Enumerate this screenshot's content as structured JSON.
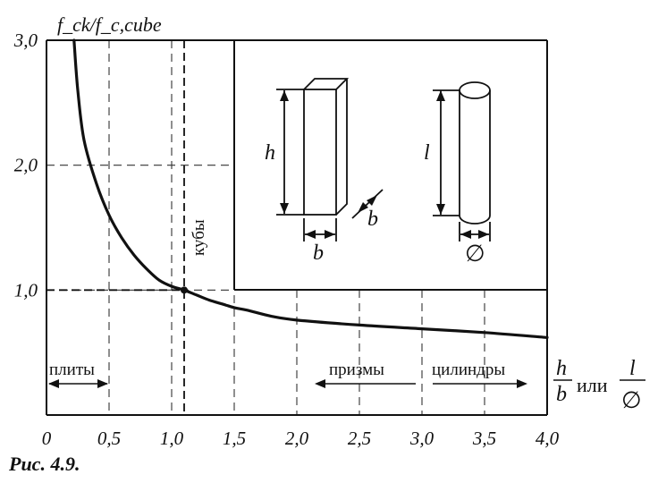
{
  "chart_data": {
    "type": "line",
    "ylabel": "f_ck/f_c,cube",
    "xlabel": {
      "first": "h",
      "first_den": "b",
      "connector": "или",
      "second": "l",
      "second_den": "∅"
    },
    "xlim": [
      0,
      4.0
    ],
    "ylim": [
      0,
      3.0
    ],
    "x_ticks": [
      "0",
      "0,5",
      "1,0",
      "1,5",
      "2,0",
      "2,5",
      "3,0",
      "3,5",
      "4,0"
    ],
    "y_ticks": [
      "1,0",
      "2,0",
      "3,0"
    ],
    "x_tick_values": [
      0,
      0.5,
      1.0,
      1.5,
      2.0,
      2.5,
      3.0,
      3.5,
      4.0
    ],
    "y_tick_values": [
      1.0,
      2.0,
      3.0
    ],
    "grid": "dashed",
    "series": [
      {
        "x": [
          0.22,
          0.25,
          0.3,
          0.4,
          0.5,
          0.6,
          0.7,
          0.8,
          0.9,
          1.0,
          1.1,
          1.2,
          1.3,
          1.4,
          1.5,
          1.6,
          1.8,
          2.0,
          2.5,
          3.0,
          3.5,
          4.0
        ],
        "y": [
          3.0,
          2.6,
          2.2,
          1.85,
          1.6,
          1.42,
          1.28,
          1.17,
          1.08,
          1.03,
          1.0,
          0.96,
          0.92,
          0.89,
          0.86,
          0.84,
          0.79,
          0.76,
          0.72,
          0.69,
          0.66,
          0.62
        ]
      }
    ],
    "marker": {
      "x": 1.1,
      "y": 1.0
    },
    "reference_lines": {
      "x": 1.1,
      "y": 1.0
    },
    "annotations": {
      "cubes": "кубы",
      "plates": "плиты",
      "prisms": "призмы",
      "cylinders": "цилиндры",
      "h_label": "h",
      "b_label": "b",
      "b_label_2": "b",
      "l_label": "l",
      "diameter_label": "∅"
    },
    "ranges": {
      "plates": [
        0.0,
        0.5
      ],
      "prisms": [
        2.2,
        3.0
      ],
      "cylinders": [
        3.0,
        4.0
      ]
    }
  },
  "figure": {
    "caption": "Рис. 4.9."
  }
}
